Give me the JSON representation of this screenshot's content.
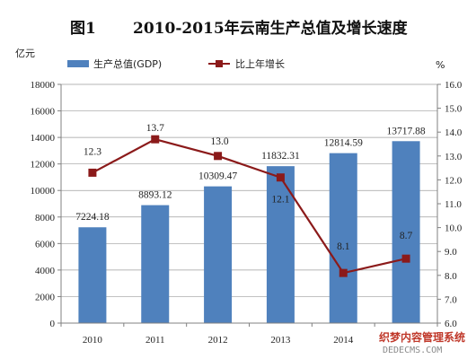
{
  "colors": {
    "bar": "#4f81bd",
    "line": "#8b1a1a",
    "axis": "#808080",
    "grid": "#9e9e9e"
  },
  "watermark": {
    "line1": "织梦内容管理系统",
    "line2": "DEDECMS.COM"
  },
  "chart_data": {
    "type": "bar",
    "title_prefix": "图1",
    "title": "2010-2015年云南生产总值及增长速度",
    "categories": [
      "2010",
      "2011",
      "2012",
      "2013",
      "2014",
      "2015"
    ],
    "series": [
      {
        "name": "生产总值(GDP)",
        "type": "bar",
        "axis": "left",
        "values": [
          7224.18,
          8893.12,
          10309.47,
          11832.31,
          12814.59,
          13717.88
        ],
        "labels": [
          "7224.18",
          "8893.12",
          "10309.47",
          "11832.31",
          "12814.59",
          "13717.88"
        ]
      },
      {
        "name": "比上年增长",
        "type": "line",
        "axis": "right",
        "values": [
          12.3,
          13.7,
          13.0,
          12.1,
          8.1,
          8.7
        ],
        "labels": [
          "12.3",
          "13.7",
          "13.0",
          "12.1",
          "8.1",
          "8.7"
        ]
      }
    ],
    "y_left": {
      "unit": "亿元",
      "min": 0,
      "max": 18000,
      "step": 2000,
      "ticks": [
        "0",
        "2000",
        "4000",
        "6000",
        "8000",
        "10000",
        "12000",
        "14000",
        "16000",
        "18000"
      ]
    },
    "y_right": {
      "unit": "%",
      "min": 6.0,
      "max": 16.0,
      "step": 1.0,
      "ticks": [
        "6.0",
        "7.0",
        "8.0",
        "9.0",
        "10.0",
        "11.0",
        "12.0",
        "13.0",
        "14.0",
        "15.0",
        "16.0"
      ]
    },
    "grid": "horizontal",
    "legend": "top"
  }
}
